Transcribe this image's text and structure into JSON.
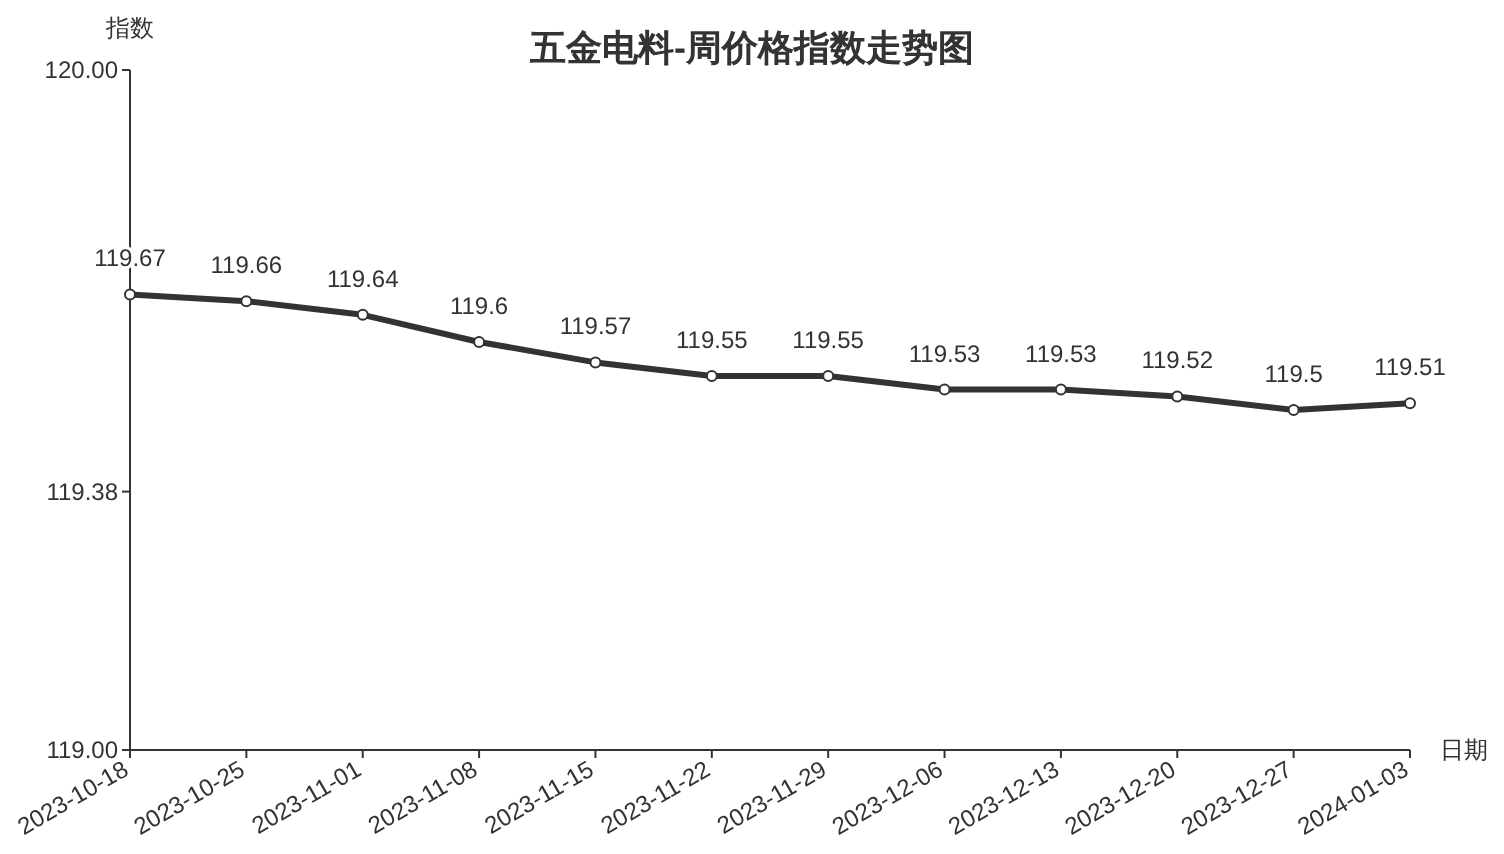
{
  "chart_data": {
    "type": "line",
    "title": "五金电料-周价格指数走势图",
    "ylabel": "指数",
    "xlabel": "日期",
    "categories": [
      "2023-10-18",
      "2023-10-25",
      "2023-11-01",
      "2023-11-08",
      "2023-11-15",
      "2023-11-22",
      "2023-11-29",
      "2023-12-06",
      "2023-12-13",
      "2023-12-20",
      "2023-12-27",
      "2024-01-03"
    ],
    "series": [
      {
        "color": "#333333",
        "values": [
          119.67,
          119.66,
          119.64,
          119.6,
          119.57,
          119.55,
          119.55,
          119.53,
          119.53,
          119.52,
          119.5,
          119.51
        ]
      }
    ],
    "ylim": [
      119,
      120
    ],
    "yticks": [
      {
        "value": 119,
        "label": "119.00"
      },
      119.38,
      {
        "value": 120,
        "label": "120.00"
      }
    ],
    "data_labels": true,
    "marker": "circle",
    "line_style": "solid",
    "grid": false
  }
}
